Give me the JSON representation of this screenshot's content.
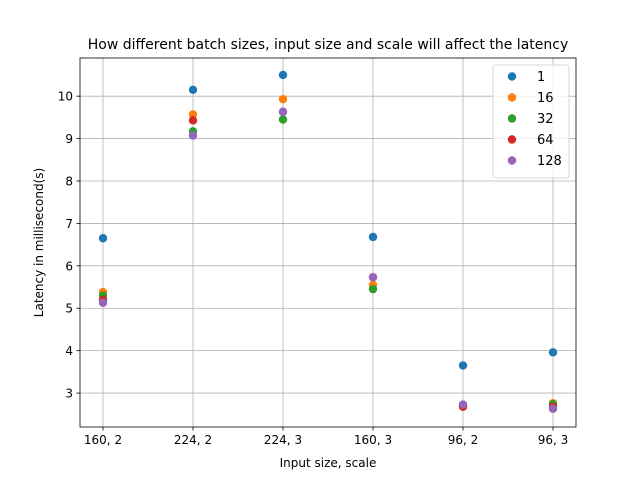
{
  "chart_data": {
    "type": "scatter",
    "title": "How different batch sizes, input size and scale will affect the latency",
    "xlabel": "Input size, scale",
    "ylabel": "Latency in millisecond(s)",
    "categories": [
      "160, 2",
      "224, 2",
      "224, 3",
      "160, 3",
      "96, 2",
      "96, 3"
    ],
    "ylim": [
      2.2,
      10.9
    ],
    "yticks": [
      3,
      4,
      5,
      6,
      7,
      8,
      9,
      10
    ],
    "grid": true,
    "legend_position": "top-right",
    "series": [
      {
        "name": "1",
        "color": "#1f77b4",
        "values": [
          6.65,
          10.15,
          10.5,
          6.68,
          3.65,
          3.96
        ]
      },
      {
        "name": "16",
        "color": "#ff7f0e",
        "values": [
          5.38,
          9.57,
          9.93,
          5.55,
          2.7,
          2.76
        ]
      },
      {
        "name": "32",
        "color": "#2ca02c",
        "values": [
          5.3,
          9.17,
          9.45,
          5.45,
          2.68,
          2.74
        ]
      },
      {
        "name": "64",
        "color": "#d62728",
        "values": [
          5.2,
          9.43,
          9.63,
          5.73,
          2.68,
          2.68
        ]
      },
      {
        "name": "128",
        "color": "#9467bd",
        "values": [
          5.13,
          9.07,
          9.63,
          5.73,
          2.73,
          2.63
        ]
      }
    ]
  }
}
